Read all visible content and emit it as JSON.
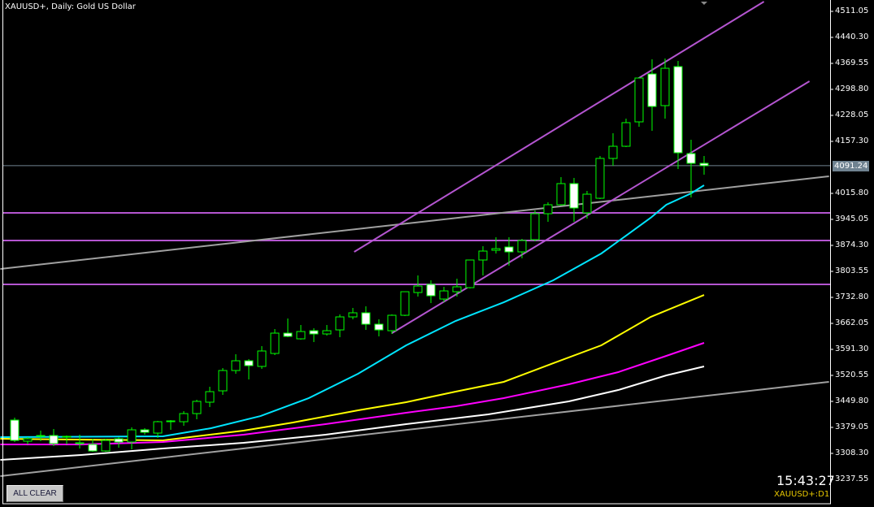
{
  "header": {
    "title": "XAUUSD+, Daily:  Gold US Dollar"
  },
  "status": {
    "clock": "15:43:27",
    "symbol_timeframe": "XAUUSD+:D1",
    "bid_label": "4091.24"
  },
  "buttons": {
    "all_clear": "ALL CLEAR"
  },
  "colors": {
    "background": "#000000",
    "candle_outline": "#00ff00",
    "bull_body": "#000000",
    "bear_body": "#ffffff",
    "ma_fast": "#00e5ff",
    "ma_mid": "#ffff00",
    "ma_slow": "#ff00ff",
    "ma_long": "#ffffff",
    "trendline": "#a0a0a0",
    "channel": "#b455d0",
    "bid_line": "#6f8290"
  },
  "chart_data": {
    "type": "candlestick",
    "symbol": "XAUUSD+",
    "timeframe": "Daily",
    "y_ticks": [
      "4511.05",
      "4440.30",
      "4369.55",
      "4298.80",
      "4228.05",
      "4157.30",
      "4015.80",
      "3945.05",
      "3874.30",
      "3803.55",
      "3732.80",
      "3662.05",
      "3591.30",
      "3520.55",
      "3449.80",
      "3379.05",
      "3308.30",
      "3237.55"
    ],
    "ylim": [
      3237.55,
      4511.05
    ],
    "bid": 4091.24,
    "candles": [
      [
        3398.9,
        3405.5,
        3339.2,
        3343.6
      ],
      [
        3341.4,
        3352.5,
        3332.6,
        3348.0
      ],
      [
        3354.7,
        3370.2,
        3341.4,
        3356.9
      ],
      [
        3356.9,
        3374.6,
        3328.1,
        3334.8
      ],
      [
        3352.5,
        3356.9,
        3332.6,
        3354.7
      ],
      [
        3334.8,
        3359.1,
        3321.5,
        3337.0
      ],
      [
        3332.6,
        3348.0,
        3312.7,
        3314.9
      ],
      [
        3314.9,
        3348.0,
        3312.7,
        3343.6
      ],
      [
        3348.0,
        3352.5,
        3323.7,
        3339.2
      ],
      [
        3339.2,
        3379.0,
        3319.3,
        3372.4
      ],
      [
        3372.4,
        3376.8,
        3359.1,
        3365.7
      ],
      [
        3363.5,
        3396.7,
        3350.3,
        3394.5
      ],
      [
        3394.5,
        3398.9,
        3372.4,
        3396.7
      ],
      [
        3394.5,
        3423.2,
        3383.4,
        3416.6
      ],
      [
        3416.6,
        3454.2,
        3401.1,
        3449.8
      ],
      [
        3447.6,
        3489.6,
        3434.3,
        3476.3
      ],
      [
        3478.5,
        3540.4,
        3467.5,
        3533.8
      ],
      [
        3533.8,
        3578.0,
        3525.0,
        3560.3
      ],
      [
        3560.3,
        3564.8,
        3509.5,
        3547.1
      ],
      [
        3544.9,
        3600.1,
        3538.2,
        3586.9
      ],
      [
        3580.2,
        3646.6,
        3575.8,
        3635.5
      ],
      [
        3635.5,
        3675.3,
        3624.4,
        3626.7
      ],
      [
        3620.0,
        3657.6,
        3617.8,
        3639.9
      ],
      [
        3642.1,
        3648.8,
        3611.2,
        3633.3
      ],
      [
        3633.3,
        3657.6,
        3628.9,
        3642.1
      ],
      [
        3644.3,
        3686.3,
        3624.4,
        3679.7
      ],
      [
        3679.7,
        3704.0,
        3673.1,
        3690.8
      ],
      [
        3690.8,
        3708.5,
        3644.3,
        3659.8
      ],
      [
        3659.8,
        3673.1,
        3626.7,
        3644.3
      ],
      [
        3642.1,
        3686.3,
        3633.3,
        3684.1
      ],
      [
        3684.1,
        3748.2,
        3681.9,
        3748.2
      ],
      [
        3746.0,
        3792.4,
        3734.9,
        3763.7
      ],
      [
        3768.1,
        3779.2,
        3717.3,
        3737.2
      ],
      [
        3728.3,
        3761.5,
        3719.5,
        3750.4
      ],
      [
        3748.2,
        3783.6,
        3734.9,
        3761.5
      ],
      [
        3759.3,
        3834.5,
        3757.1,
        3834.5
      ],
      [
        3834.5,
        3872.1,
        3792.5,
        3858.8
      ],
      [
        3861.0,
        3896.4,
        3852.2,
        3865.4
      ],
      [
        3869.9,
        3896.4,
        3819.0,
        3856.6
      ],
      [
        3856.6,
        3892.0,
        3839.2,
        3887.5
      ],
      [
        3889.8,
        3969.4,
        3885.3,
        3960.5
      ],
      [
        3960.5,
        3991.5,
        3938.4,
        3984.9
      ],
      [
        3984.9,
        4060.0,
        3982.7,
        4042.4
      ],
      [
        4042.4,
        4057.8,
        3938.4,
        3976.0
      ],
      [
        3962.8,
        4022.5,
        3947.2,
        4013.6
      ],
      [
        4002.5,
        4117.5,
        4000.3,
        4110.9
      ],
      [
        4110.9,
        4179.4,
        4090.9,
        4144.0
      ],
      [
        4144.0,
        4219.2,
        4141.8,
        4208.2
      ],
      [
        4210.4,
        4329.7,
        4197.1,
        4329.7
      ],
      [
        4340.8,
        4380.6,
        4186.0,
        4252.3
      ],
      [
        4254.6,
        4382.8,
        4219.2,
        4356.2
      ],
      [
        4360.7,
        4376.1,
        4082.1,
        4126.3
      ],
      [
        4124.1,
        4161.7,
        4004.8,
        4097.6
      ],
      [
        4097.6,
        4117.5,
        4066.7,
        4091.2
      ]
    ],
    "candle_fields": [
      "open",
      "high",
      "low",
      "close"
    ],
    "moving_averages": [
      {
        "color": "#00e5ff",
        "points": [
          [
            -1.1,
            3352.5
          ],
          [
            11.4,
            3354.7
          ],
          [
            15.1,
            3376.8
          ],
          [
            18.9,
            3409.9
          ],
          [
            22.6,
            3458.6
          ],
          [
            26.4,
            3524.9
          ],
          [
            30.1,
            3602.3
          ],
          [
            33.9,
            3668.6
          ],
          [
            37.6,
            3719.5
          ],
          [
            41.4,
            3779.2
          ],
          [
            45.1,
            3852.2
          ],
          [
            47,
            3900.8
          ],
          [
            48.9,
            3949.5
          ],
          [
            50.1,
            3984.9
          ],
          [
            52,
            4015.8
          ],
          [
            53,
            4037.9
          ]
        ]
      },
      {
        "color": "#ffff00",
        "points": [
          [
            -1.1,
            3348.0
          ],
          [
            11.4,
            3343.6
          ],
          [
            17.6,
            3370.2
          ],
          [
            21.4,
            3392.3
          ],
          [
            26.4,
            3425.5
          ],
          [
            30.1,
            3447.6
          ],
          [
            33.9,
            3476.3
          ],
          [
            37.6,
            3502.9
          ],
          [
            41.4,
            3553.7
          ],
          [
            45.1,
            3602.3
          ],
          [
            48.9,
            3679.7
          ],
          [
            53,
            3739.4
          ]
        ]
      },
      {
        "color": "#ff00ff",
        "points": [
          [
            -1.1,
            3332.6
          ],
          [
            5.1,
            3332.6
          ],
          [
            11.4,
            3339.2
          ],
          [
            17.6,
            3359.1
          ],
          [
            23.9,
            3387.9
          ],
          [
            30.1,
            3418.8
          ],
          [
            33.9,
            3436.5
          ],
          [
            37.6,
            3458.6
          ],
          [
            42.6,
            3496.2
          ],
          [
            46.4,
            3529.4
          ],
          [
            50.1,
            3573.6
          ],
          [
            53,
            3609.0
          ]
        ]
      },
      {
        "color": "#ffffff",
        "points": [
          [
            -1.1,
            3290.5
          ],
          [
            5.1,
            3303.8
          ],
          [
            11.4,
            3321.5
          ],
          [
            17.6,
            3337.0
          ],
          [
            23.9,
            3359.1
          ],
          [
            30.1,
            3387.9
          ],
          [
            36.4,
            3414.4
          ],
          [
            42.6,
            3449.8
          ],
          [
            46.4,
            3480.7
          ],
          [
            50.1,
            3520.5
          ],
          [
            53,
            3544.9
          ]
        ]
      }
    ],
    "trendlines": [
      {
        "color": "#a0a0a0",
        "from": [
          -1.1,
          3246.4
        ],
        "to": [
          62.6,
          3502.9
        ]
      },
      {
        "color": "#a0a0a0",
        "from": [
          -1.1,
          3810.2
        ],
        "to": [
          62.6,
          4062.2
        ]
      },
      {
        "color": "#b455d0",
        "from": [
          26.1,
          3856.6
        ],
        "to": [
          57.6,
          4537.6
        ]
      },
      {
        "color": "#b455d0",
        "from": [
          29.0,
          3635.5
        ],
        "to": [
          61.1,
          4320.9
        ]
      }
    ],
    "horizontal_lines": [
      3962.8,
      3887.5,
      3768.1
    ]
  }
}
